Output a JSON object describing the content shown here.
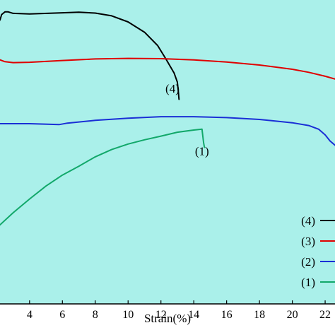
{
  "chart_data": {
    "type": "line",
    "xlabel": "Strain(%)",
    "ylabel": "",
    "xlim": [
      2.2,
      22.6
    ],
    "ylim": [
      0,
      100
    ],
    "x_ticks": [
      4,
      6,
      8,
      10,
      12,
      14,
      16,
      18,
      20,
      22
    ],
    "grid": false,
    "legend_position": "bottom-right",
    "background_color": "#aaf0ea",
    "series": [
      {
        "name": "(4)",
        "color": "#000000",
        "x": [
          2.2,
          2.3,
          2.5,
          2.7,
          3.0,
          4.0,
          6.0,
          7.0,
          8.0,
          9.0,
          10.0,
          11.0,
          11.8,
          12.3,
          12.8,
          13.0,
          13.05,
          13.1
        ],
        "y": [
          93.4,
          95.2,
          96.1,
          96.1,
          95.6,
          95.4,
          95.8,
          96.0,
          95.7,
          94.8,
          92.8,
          89.4,
          85.0,
          80.6,
          76.0,
          73.0,
          70.5,
          67.3
        ]
      },
      {
        "name": "(3)",
        "color": "#e00000",
        "x": [
          2.2,
          2.5,
          3,
          4,
          6,
          8,
          10,
          12,
          14,
          16,
          18,
          20,
          21,
          22,
          22.6
        ],
        "y": [
          80.3,
          79.7,
          79.4,
          79.5,
          80.1,
          80.6,
          80.8,
          80.7,
          80.3,
          79.6,
          78.6,
          77.2,
          76.2,
          74.9,
          74.0
        ]
      },
      {
        "name": "(2)",
        "color": "#1a2fd6",
        "x": [
          2.2,
          4,
          5.8,
          6.3,
          8,
          10,
          12,
          14,
          16,
          18,
          20,
          21,
          21.6,
          22,
          22.3,
          22.6
        ],
        "y": [
          59.3,
          59.3,
          59.0,
          59.5,
          60.4,
          61.1,
          61.6,
          61.6,
          61.3,
          60.7,
          59.6,
          58.7,
          57.5,
          55.6,
          53.6,
          52.2
        ]
      },
      {
        "name": "(1)",
        "color": "#12a86a",
        "x": [
          2.2,
          3,
          4,
          5,
          6,
          7,
          8,
          9,
          10,
          11,
          12,
          13,
          14,
          14.5,
          14.6,
          14.65
        ],
        "y": [
          26.0,
          30.0,
          34.5,
          38.8,
          42.4,
          45.3,
          48.4,
          50.8,
          52.6,
          54.0,
          55.2,
          56.5,
          57.2,
          57.5,
          53.0,
          51.5
        ]
      }
    ],
    "annotations": [
      {
        "text": "(4)",
        "x": 12.7,
        "y": 69.5
      },
      {
        "text": "(1)",
        "x": 14.5,
        "y": 49.0
      }
    ]
  }
}
